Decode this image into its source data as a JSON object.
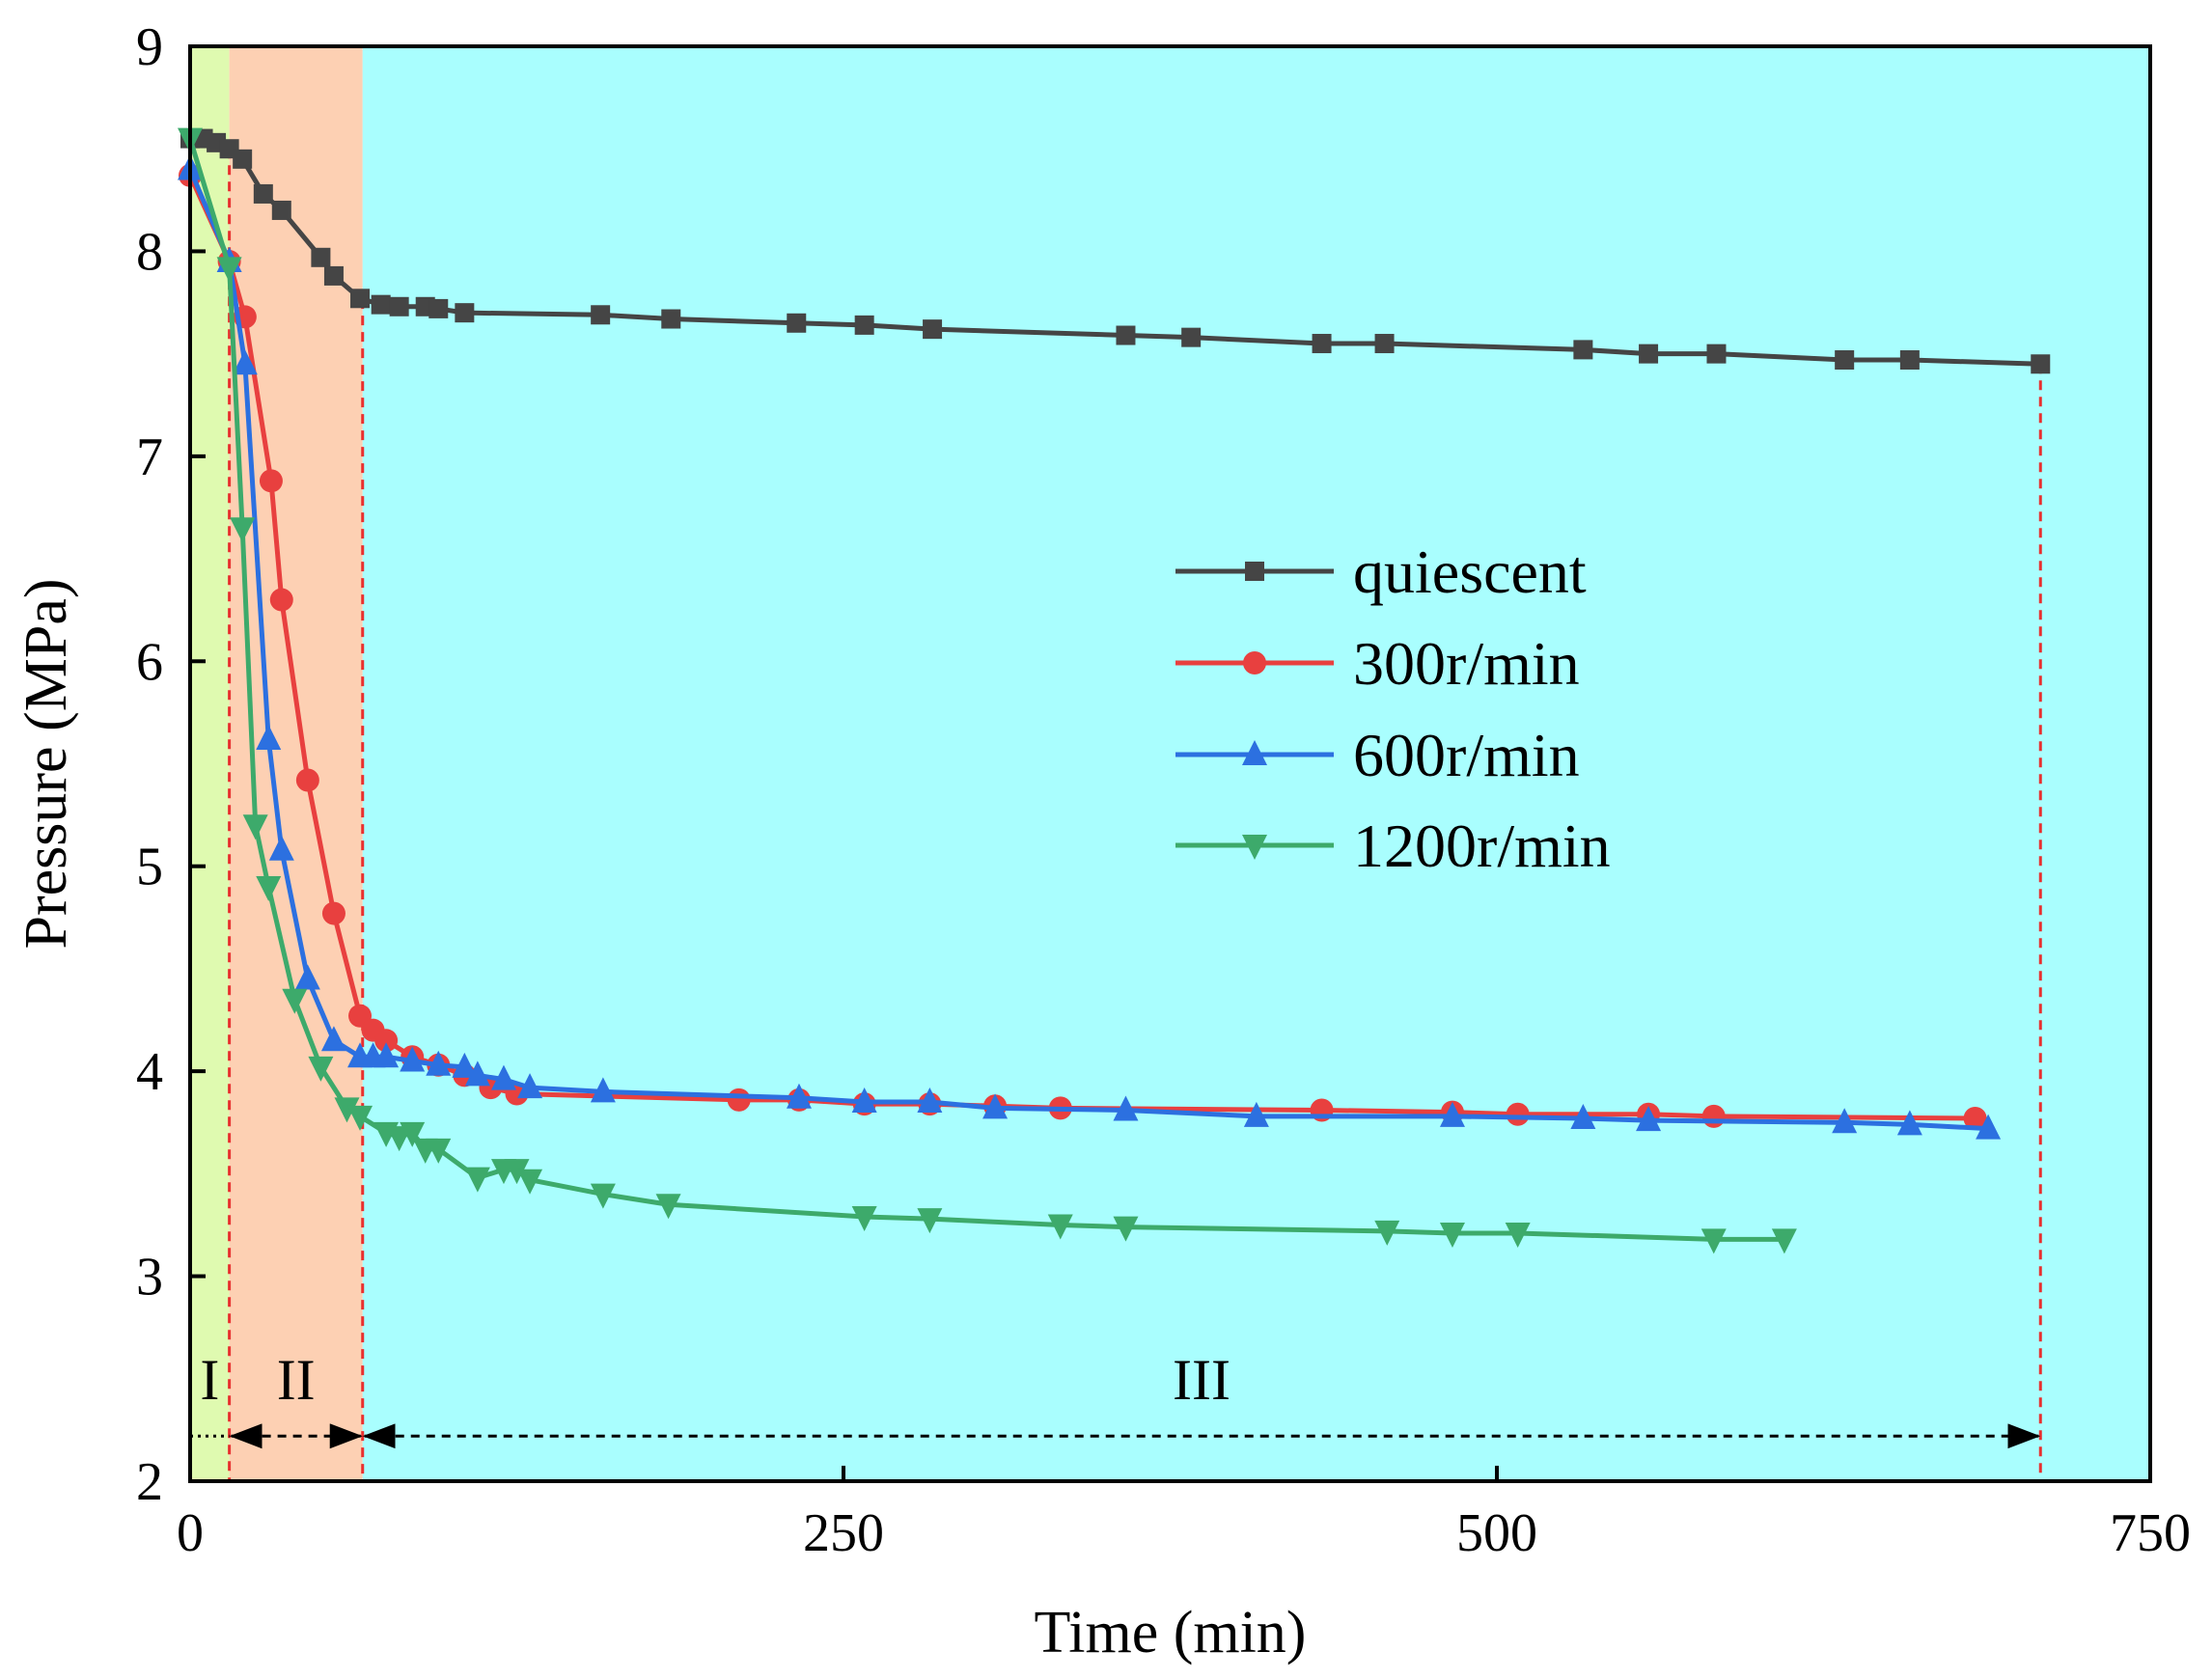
{
  "chart_data": {
    "type": "line",
    "xlabel": "Time (min)",
    "ylabel": "Pressure (MPa)",
    "xlim": [
      0,
      750
    ],
    "ylim": [
      2,
      9
    ],
    "xticks": [
      0,
      250,
      500,
      750
    ],
    "yticks": [
      2,
      3,
      4,
      5,
      6,
      7,
      8,
      9
    ],
    "grid": false,
    "legend_position": "center-right",
    "regions": [
      {
        "label": "I",
        "x_start": 0,
        "x_end": 15,
        "color": "#dffab0"
      },
      {
        "label": "II",
        "x_start": 15,
        "x_end": 66,
        "color": "#fdd0b3"
      },
      {
        "label": "III",
        "x_start": 66,
        "x_end": 750,
        "color": "#a9fefe"
      }
    ],
    "vlines": [
      15,
      66,
      708
    ],
    "stage_arrows": [
      {
        "label": "I",
        "x_start": 0,
        "x_end": 15
      },
      {
        "label": "II",
        "x_start": 15,
        "x_end": 66
      },
      {
        "label": "III",
        "x_start": 66,
        "x_end": 708
      }
    ],
    "series": [
      {
        "name": "quiescent",
        "color": "#454545",
        "marker": "square",
        "x": [
          0,
          5,
          10,
          15,
          20,
          28,
          35,
          50,
          55,
          65,
          73,
          80,
          90,
          95,
          105,
          157,
          184,
          232,
          258,
          284,
          358,
          383,
          433,
          457,
          533,
          558,
          584,
          633,
          658,
          708
        ],
        "y": [
          8.55,
          8.55,
          8.53,
          8.5,
          8.45,
          8.28,
          8.2,
          7.97,
          7.88,
          7.77,
          7.74,
          7.73,
          7.73,
          7.72,
          7.7,
          7.69,
          7.67,
          7.65,
          7.64,
          7.62,
          7.59,
          7.58,
          7.55,
          7.55,
          7.52,
          7.5,
          7.5,
          7.47,
          7.47,
          7.45
        ]
      },
      {
        "name": "300r/min",
        "color": "#e8403f",
        "marker": "circle",
        "x": [
          0,
          15,
          21,
          31,
          35,
          45,
          55,
          65,
          70,
          75,
          85,
          95,
          105,
          115,
          125,
          210,
          233,
          258,
          283,
          308,
          333,
          433,
          483,
          508,
          558,
          583,
          683
        ],
        "y": [
          8.37,
          7.95,
          7.68,
          6.88,
          6.3,
          5.42,
          4.77,
          4.27,
          4.2,
          4.15,
          4.07,
          4.03,
          3.98,
          3.92,
          3.89,
          3.86,
          3.86,
          3.84,
          3.84,
          3.83,
          3.82,
          3.81,
          3.8,
          3.79,
          3.79,
          3.78,
          3.77
        ]
      },
      {
        "name": "600r/min",
        "color": "#2c70e0",
        "marker": "triangle-up",
        "x": [
          0,
          15,
          21,
          30,
          35,
          45,
          55,
          65,
          70,
          75,
          85,
          95,
          105,
          110,
          120,
          130,
          158,
          233,
          258,
          283,
          308,
          358,
          408,
          483,
          533,
          558,
          633,
          658,
          688
        ],
        "y": [
          8.4,
          7.95,
          7.45,
          5.62,
          5.08,
          4.45,
          4.15,
          4.07,
          4.07,
          4.07,
          4.05,
          4.03,
          4.02,
          3.98,
          3.96,
          3.92,
          3.9,
          3.87,
          3.85,
          3.85,
          3.82,
          3.81,
          3.78,
          3.78,
          3.77,
          3.76,
          3.75,
          3.74,
          3.72
        ]
      },
      {
        "name": "1200r/min",
        "color": "#3daa6b",
        "marker": "triangle-down",
        "x": [
          0,
          15,
          20,
          25,
          30,
          40,
          50,
          60,
          65,
          75,
          80,
          85,
          90,
          95,
          110,
          120,
          125,
          130,
          158,
          183,
          258,
          283,
          333,
          358,
          458,
          483,
          508,
          583,
          610
        ],
        "y": [
          8.55,
          7.92,
          6.65,
          5.2,
          4.9,
          4.35,
          4.02,
          3.82,
          3.78,
          3.7,
          3.68,
          3.7,
          3.62,
          3.62,
          3.48,
          3.52,
          3.52,
          3.47,
          3.4,
          3.35,
          3.29,
          3.28,
          3.25,
          3.24,
          3.22,
          3.21,
          3.21,
          3.18,
          3.18
        ]
      }
    ]
  }
}
